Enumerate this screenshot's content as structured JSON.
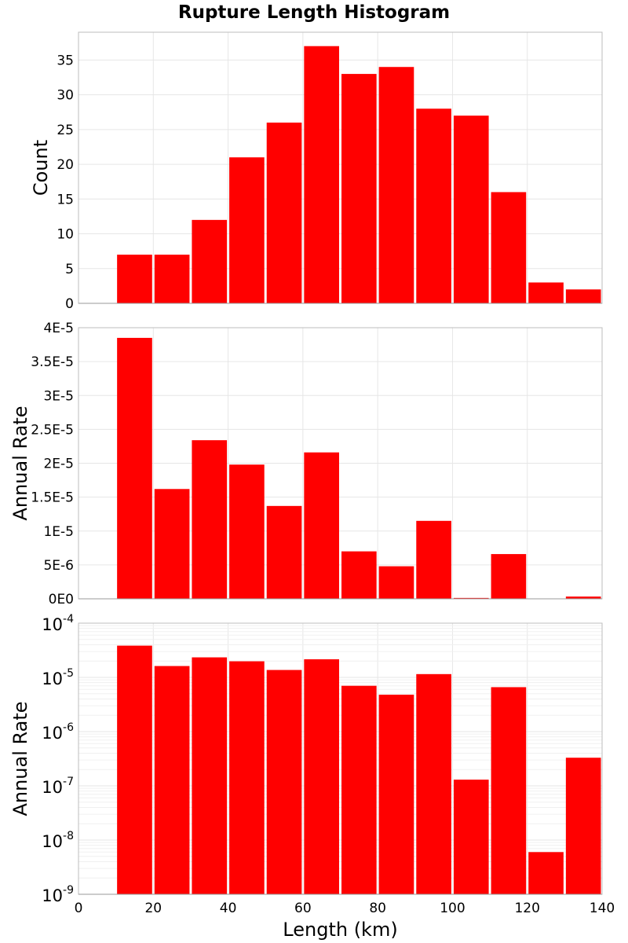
{
  "title": "Rupture Length Histogram",
  "colors": {
    "bar": "#ff0000",
    "gridline": "#e6e6e6",
    "frame": "#bdbdbd"
  },
  "chart_data": [
    {
      "type": "bar",
      "name": "count-panel",
      "bin_edges": [
        10,
        20,
        30,
        40,
        50,
        60,
        70,
        80,
        90,
        100,
        110,
        120,
        130,
        140
      ],
      "values": [
        7,
        7,
        12,
        21,
        26,
        37,
        33,
        34,
        28,
        27,
        16,
        3,
        2
      ],
      "ylabel": "Count",
      "xlim": [
        0,
        140
      ],
      "ylim": [
        0,
        39
      ],
      "yscale": "linear",
      "yticks": [
        0,
        5,
        10,
        15,
        20,
        25,
        30,
        35
      ],
      "ytick_labels": [
        "0",
        "5",
        "10",
        "15",
        "20",
        "25",
        "30",
        "35"
      ],
      "grid": true
    },
    {
      "type": "bar",
      "name": "rate-linear-panel",
      "bin_edges": [
        10,
        20,
        30,
        40,
        50,
        60,
        70,
        80,
        90,
        100,
        110,
        120,
        130,
        140
      ],
      "values": [
        3.85e-05,
        1.62e-05,
        2.34e-05,
        1.98e-05,
        1.37e-05,
        2.16e-05,
        7e-06,
        4.8e-06,
        1.15e-05,
        1.3e-07,
        6.6e-06,
        6e-09,
        3.3e-07
      ],
      "ylabel": "Annual Rate",
      "xlim": [
        0,
        140
      ],
      "ylim": [
        0,
        4e-05
      ],
      "yscale": "linear",
      "yticks": [
        0,
        5e-06,
        1e-05,
        1.5e-05,
        2e-05,
        2.5e-05,
        3e-05,
        3.5e-05,
        4e-05
      ],
      "ytick_labels": [
        "0E0",
        "5E-6",
        "1E-5",
        "1.5E-5",
        "2E-5",
        "2.5E-5",
        "3E-5",
        "3.5E-5",
        "4E-5"
      ],
      "grid": true
    },
    {
      "type": "bar",
      "name": "rate-log-panel",
      "bin_edges": [
        10,
        20,
        30,
        40,
        50,
        60,
        70,
        80,
        90,
        100,
        110,
        120,
        130,
        140
      ],
      "values": [
        3.85e-05,
        1.62e-05,
        2.34e-05,
        1.98e-05,
        1.37e-05,
        2.16e-05,
        7e-06,
        4.8e-06,
        1.15e-05,
        1.3e-07,
        6.6e-06,
        6e-09,
        3.3e-07
      ],
      "ylabel": "Annual Rate",
      "xlabel": "Length (km)",
      "xlim": [
        0,
        140
      ],
      "ylim": [
        1e-09,
        0.0001
      ],
      "yscale": "log",
      "ytick_exponents": [
        -9,
        -8,
        -7,
        -6,
        -5,
        -4
      ],
      "ytick_base": "10",
      "xticks": [
        0,
        20,
        40,
        60,
        80,
        100,
        120,
        140
      ],
      "xtick_labels": [
        "0",
        "20",
        "40",
        "60",
        "80",
        "100",
        "120",
        "140"
      ],
      "grid": true
    }
  ]
}
